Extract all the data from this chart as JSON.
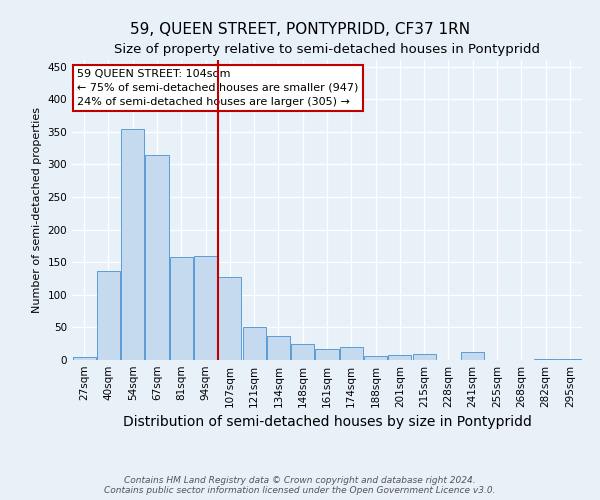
{
  "title": "59, QUEEN STREET, PONTYPRIDD, CF37 1RN",
  "subtitle": "Size of property relative to semi-detached houses in Pontypridd",
  "xlabel": "Distribution of semi-detached houses by size in Pontypridd",
  "ylabel": "Number of semi-detached properties",
  "categories": [
    "27sqm",
    "40sqm",
    "54sqm",
    "67sqm",
    "81sqm",
    "94sqm",
    "107sqm",
    "121sqm",
    "134sqm",
    "148sqm",
    "161sqm",
    "174sqm",
    "188sqm",
    "201sqm",
    "215sqm",
    "228sqm",
    "241sqm",
    "255sqm",
    "268sqm",
    "282sqm",
    "295sqm"
  ],
  "values": [
    4,
    137,
    354,
    315,
    158,
    160,
    127,
    50,
    37,
    25,
    17,
    20,
    6,
    7,
    9,
    0,
    12,
    0,
    0,
    2,
    1
  ],
  "bar_color": "#c5d9ef",
  "bar_edge_color": "#5b9bd5",
  "property_label": "59 QUEEN STREET: 104sqm",
  "pct_smaller": 75,
  "n_smaller": 947,
  "pct_larger": 24,
  "n_larger": 305,
  "vline_x_index": 5.5,
  "annotation_box_color": "#c00000",
  "background_color": "#e8f0f8",
  "grid_color": "#ffffff",
  "ylim": [
    0,
    460
  ],
  "yticks": [
    0,
    50,
    100,
    150,
    200,
    250,
    300,
    350,
    400,
    450
  ],
  "footer": "Contains HM Land Registry data © Crown copyright and database right 2024.\nContains public sector information licensed under the Open Government Licence v3.0.",
  "title_fontsize": 11,
  "subtitle_fontsize": 9.5,
  "xlabel_fontsize": 10,
  "ylabel_fontsize": 8,
  "tick_fontsize": 7.5,
  "annotation_fontsize": 8
}
